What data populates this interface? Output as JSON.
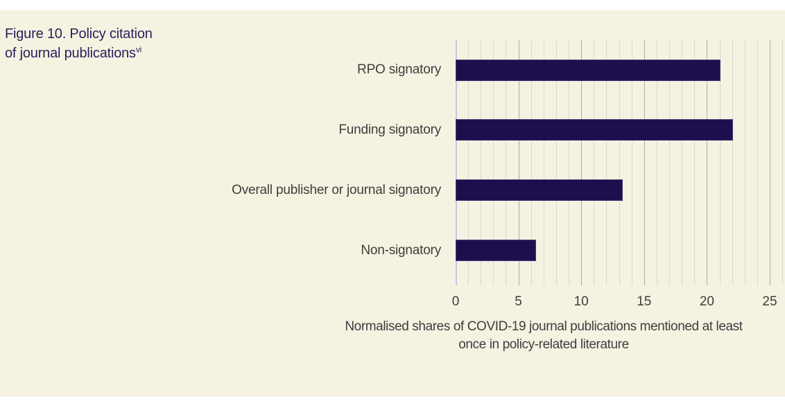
{
  "page": {
    "title": {
      "line1": "Figure 10. Policy citation",
      "line2": "of journal publications",
      "superscript": "vi"
    }
  },
  "chart_data": {
    "type": "bar",
    "orientation": "horizontal",
    "title": "Figure 10. Policy citation of journal publications",
    "categories": [
      "RPO signatory",
      "Funding signatory",
      "Overall publisher or journal signatory",
      "Non-signatory"
    ],
    "values": [
      21.1,
      22.1,
      13.3,
      6.4
    ],
    "xlabel": "Normalised shares of COVID-19 journal publications mentioned at least once in policy-related literature",
    "xlabel_lines": [
      "Normalised shares of COVID-19 journal publications mentioned at least",
      "once in policy-related literature"
    ],
    "ylabel": "",
    "xlim": [
      0,
      26
    ],
    "xticks": [
      0,
      5,
      10,
      15,
      20,
      25
    ],
    "minor_grid_step": 1,
    "major_grid_step": 5,
    "grid": "vertical",
    "legend": "none"
  },
  "colors": {
    "background": "#f6f2e2",
    "bar": "#1d0f4d",
    "title_text": "#29205a",
    "axis_text": "#3d3d3d",
    "minor_gridline": "#dbd8cb",
    "major_gridline": "#adaba1",
    "zero_axis_line": "#c9c3ec"
  }
}
